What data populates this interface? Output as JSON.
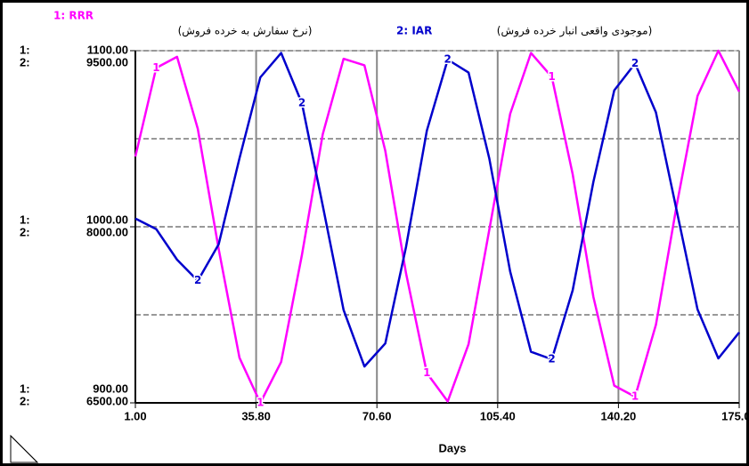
{
  "chart_data": {
    "type": "line",
    "x": [
      1,
      7,
      13,
      19,
      25,
      31,
      37,
      43,
      49,
      55,
      61,
      67,
      73,
      79,
      85,
      91,
      97,
      103,
      109,
      115,
      121,
      127,
      133,
      139,
      145,
      151,
      157,
      163,
      169,
      175
    ],
    "xlabel": "Days",
    "xlim": [
      1,
      175
    ],
    "xticks": [
      {
        "value": 1,
        "label": "1.00"
      },
      {
        "value": 35.8,
        "label": "35.80"
      },
      {
        "value": 70.6,
        "label": "70.60"
      },
      {
        "value": 105.4,
        "label": "105.40"
      },
      {
        "value": 140.2,
        "label": "140.20"
      },
      {
        "value": 175,
        "label": "175.00"
      }
    ],
    "ylim": [
      900,
      1100
    ],
    "yticks": [
      {
        "value": 900,
        "label": "900.00"
      },
      {
        "value": 1000,
        "label": "1000.00"
      },
      {
        "value": 1100,
        "label": "1100.00"
      }
    ],
    "y2lim": [
      6500,
      9500
    ],
    "y2ticks": [
      {
        "value": 6500,
        "label": "6500.00"
      },
      {
        "value": 8000,
        "label": "8000.00"
      },
      {
        "value": 9500,
        "label": "9500.00"
      }
    ],
    "ygrid": [
      900,
      950,
      1000,
      1050,
      1100
    ],
    "axis_keys": [
      "1:",
      "2:"
    ],
    "grid": true,
    "series": [
      {
        "name": "1: RRR",
        "key": "1",
        "description": "(نرخ سفارش به خرده فروش)",
        "color": "#ff00ff",
        "values": [
          1039.9,
          1090.2,
          1096.5,
          1055.6,
          987.5,
          925.6,
          900.0,
          923.3,
          984.0,
          1052.6,
          1095.4,
          1091.7,
          1043.2,
          973.6,
          916.9,
          900.8,
          933.3,
          998.3,
          1064.1,
          1098.7,
          1085.1,
          1029.9,
          960.1,
          909.8,
          903.5,
          944.4,
          1012.4,
          1074.3,
          1100.0,
          1076.7
        ]
      },
      {
        "name": "2: IAR",
        "key": "2",
        "description": "(موجودی واقعی انبار خرده فروش)",
        "color": "#0000cc",
        "axis": "y2",
        "values": [
          8070,
          7980,
          7720,
          7540,
          7850,
          8583,
          9273,
          9480,
          9052,
          8180,
          7291,
          6810,
          7006,
          7829,
          8820,
          9424,
          9314,
          8582,
          7620,
          6935,
          6871,
          7458,
          8383,
          9162,
          9391,
          8974,
          8135,
          7296,
          6879,
          7100
        ]
      }
    ]
  }
}
